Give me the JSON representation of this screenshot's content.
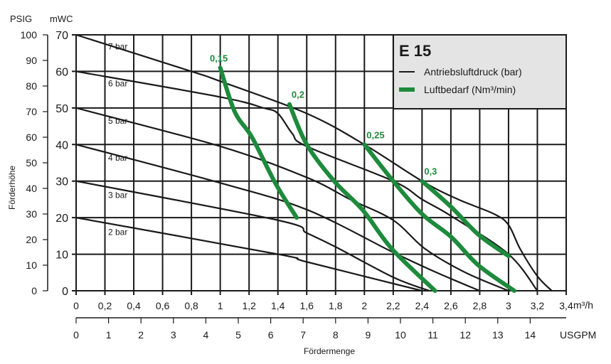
{
  "chart_data": {
    "type": "line",
    "title": "E 15",
    "ylabel": "Förderhöhe",
    "xlabel": "Fördermenge",
    "y_units": {
      "left": "PSIG",
      "right": "mWC"
    },
    "x_units": {
      "primary": "m³/h",
      "secondary": "USGPM"
    },
    "xlim": [
      0,
      3.4
    ],
    "ylim": [
      0,
      70
    ],
    "psig_lim": [
      0,
      100
    ],
    "usgpm_lim": [
      0,
      14
    ],
    "x_ticks": [
      "0",
      "0,2",
      "0,4",
      "0,6",
      "0,8",
      "1",
      "1,2",
      "1,4",
      "1,6",
      "1,8",
      "2",
      "2,2",
      "2,4",
      "2,6",
      "2,8",
      "3",
      "3,2",
      "3,4"
    ],
    "x_tick_values": [
      0,
      0.2,
      0.4,
      0.6,
      0.8,
      1,
      1.2,
      1.4,
      1.6,
      1.8,
      2,
      2.2,
      2.4,
      2.6,
      2.8,
      3,
      3.2,
      3.4
    ],
    "x_unit_label": "m³/h",
    "usgpm_ticks": [
      "0",
      "1",
      "2",
      "3",
      "4",
      "5",
      "6",
      "7",
      "8",
      "9",
      "10",
      "11",
      "12",
      "13",
      "14"
    ],
    "usgpm_unit_label": "USGPM",
    "mwc_ticks": [
      "0",
      "10",
      "20",
      "30",
      "40",
      "50",
      "60",
      "70"
    ],
    "psig_ticks": [
      "0",
      "10",
      "20",
      "30",
      "40",
      "50",
      "60",
      "70",
      "80",
      "90",
      "100"
    ],
    "grid": true,
    "legend": {
      "placement": "top-right",
      "title": "E 15",
      "entries": [
        {
          "label": "Antriebsluftdruck (bar)",
          "color": "#1a1a1a"
        },
        {
          "label": "Luftbedarf (Nm³/min)",
          "color": "#1e8a3c"
        }
      ]
    },
    "pressure_series": [
      {
        "name": "7 bar",
        "points": [
          [
            0,
            70
          ],
          [
            0.8,
            60
          ],
          [
            1,
            57.3
          ],
          [
            1.6,
            48.5
          ],
          [
            2,
            40
          ],
          [
            2.4,
            30
          ],
          [
            2.65,
            25
          ],
          [
            2.9,
            21
          ],
          [
            3,
            18
          ],
          [
            3.08,
            11.5
          ],
          [
            3.2,
            4
          ],
          [
            3.3,
            0
          ]
        ]
      },
      {
        "name": "6 bar",
        "points": [
          [
            0,
            60
          ],
          [
            1,
            53
          ],
          [
            1.3,
            50
          ],
          [
            1.4,
            48.5
          ],
          [
            1.5,
            43
          ],
          [
            1.6,
            39.5
          ],
          [
            2.2,
            30
          ],
          [
            2.4,
            25
          ],
          [
            2.6,
            20.5
          ],
          [
            3,
            10
          ],
          [
            3.2,
            0
          ]
        ]
      },
      {
        "name": "5 bar",
        "points": [
          [
            0,
            50
          ],
          [
            1,
            39.5
          ],
          [
            1.6,
            31
          ],
          [
            1.9,
            25
          ],
          [
            2.2,
            19.3
          ],
          [
            2.42,
            11.5
          ],
          [
            2.7,
            5
          ],
          [
            3,
            0
          ]
        ]
      },
      {
        "name": "4 bar",
        "points": [
          [
            0,
            40
          ],
          [
            1,
            29.5
          ],
          [
            1.6,
            22.2
          ],
          [
            2.2,
            10.5
          ],
          [
            2.5,
            5
          ],
          [
            2.8,
            0
          ]
        ]
      },
      {
        "name": "3 bar",
        "points": [
          [
            0,
            30
          ],
          [
            1.4,
            19.3
          ],
          [
            1.6,
            15.8
          ],
          [
            1.8,
            12
          ],
          [
            2.2,
            3.7
          ],
          [
            2.45,
            0
          ]
        ]
      },
      {
        "name": "2 bar",
        "points": [
          [
            0,
            20
          ],
          [
            1.4,
            10
          ],
          [
            1.6,
            7.9
          ],
          [
            2.4,
            0
          ]
        ]
      }
    ],
    "air_series": [
      {
        "name": "0,15",
        "points": [
          [
            1,
            61
          ],
          [
            1.1,
            49
          ],
          [
            1.22,
            42
          ],
          [
            1.38,
            29.6
          ],
          [
            1.53,
            20
          ]
        ]
      },
      {
        "name": "0,2",
        "points": [
          [
            1.48,
            51
          ],
          [
            1.6,
            40
          ],
          [
            1.79,
            30
          ],
          [
            1.99,
            22
          ],
          [
            2.19,
            11.5
          ],
          [
            2.49,
            0
          ]
        ]
      },
      {
        "name": "0,25",
        "points": [
          [
            2,
            40
          ],
          [
            2.2,
            30
          ],
          [
            2.4,
            21
          ],
          [
            2.6,
            14.8
          ],
          [
            2.79,
            7
          ],
          [
            3.04,
            0
          ]
        ]
      },
      {
        "name": "0,3",
        "points": [
          [
            2.4,
            30
          ],
          [
            2.6,
            23
          ],
          [
            2.79,
            15.4
          ],
          [
            3,
            9.5
          ]
        ]
      }
    ]
  }
}
